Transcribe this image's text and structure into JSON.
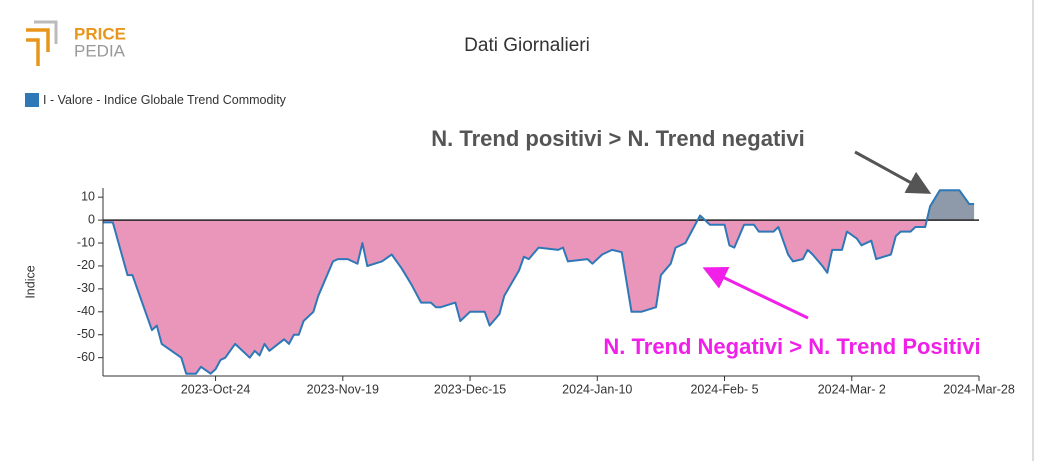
{
  "logo": {
    "top": "PRICE",
    "bottom": "PEDIA"
  },
  "chart_data": {
    "type": "area",
    "title": "Dati Giornalieri",
    "y_label": "Indice",
    "annotations": [
      "N. Trend positivi > N. Trend negativi",
      "N. Trend Negativi > N. Trend Positivi"
    ],
    "annotation_colors": [
      "#555555",
      "#f020e8"
    ],
    "positive_fill": "#8e99a9",
    "negative_fill": "#e996ba",
    "x": [
      "2023-10-01",
      "2023-10-03",
      "2023-10-06",
      "2023-10-07",
      "2023-10-11",
      "2023-10-12",
      "2023-10-13",
      "2023-10-17",
      "2023-10-18",
      "2023-10-20",
      "2023-10-21",
      "2023-10-23",
      "2023-10-24",
      "2023-10-25",
      "2023-10-26",
      "2023-10-28",
      "2023-10-31",
      "2023-11-01",
      "2023-11-02",
      "2023-11-03",
      "2023-11-04",
      "2023-11-07",
      "2023-11-08",
      "2023-11-09",
      "2023-11-10",
      "2023-11-11",
      "2023-11-13",
      "2023-11-14",
      "2023-11-15",
      "2023-11-17",
      "2023-11-18",
      "2023-11-20",
      "2023-11-22",
      "2023-11-23",
      "2023-11-24",
      "2023-11-27",
      "2023-11-29",
      "2023-12-01",
      "2023-12-03",
      "2023-12-05",
      "2023-12-07",
      "2023-12-08",
      "2023-12-09",
      "2023-12-12",
      "2023-12-13",
      "2023-12-15",
      "2023-12-18",
      "2023-12-19",
      "2023-12-21",
      "2023-12-22",
      "2023-12-25",
      "2023-12-26",
      "2023-12-27",
      "2023-12-29",
      "2024-01-02",
      "2024-01-03",
      "2024-01-04",
      "2024-01-08",
      "2024-01-09",
      "2024-01-11",
      "2024-01-13",
      "2024-01-15",
      "2024-01-17",
      "2024-01-19",
      "2024-01-22",
      "2024-01-23",
      "2024-01-25",
      "2024-01-26",
      "2024-01-28",
      "2024-01-31",
      "2024-02-02",
      "2024-02-05",
      "2024-02-06",
      "2024-02-07",
      "2024-02-09",
      "2024-02-11",
      "2024-02-12",
      "2024-02-15",
      "2024-02-16",
      "2024-02-17",
      "2024-02-18",
      "2024-02-19",
      "2024-02-21",
      "2024-02-22",
      "2024-02-23",
      "2024-02-25",
      "2024-02-26",
      "2024-02-27",
      "2024-02-29",
      "2024-03-01",
      "2024-03-03",
      "2024-03-04",
      "2024-03-06",
      "2024-03-07",
      "2024-03-10",
      "2024-03-11",
      "2024-03-12",
      "2024-03-14",
      "2024-03-15",
      "2024-03-17",
      "2024-03-18",
      "2024-03-20",
      "2024-03-24",
      "2024-03-26",
      "2024-03-27"
    ],
    "series": [
      {
        "name": "I - Valore - Indice Globale Trend Commodity",
        "color": "#2e78b7",
        "values": [
          -1,
          -1,
          -24,
          -24,
          -48,
          -46,
          -54,
          -60,
          -67,
          -67,
          -64,
          -67,
          -65,
          -61,
          -60,
          -54,
          -60,
          -57,
          -59,
          -54,
          -57,
          -52,
          -54,
          -50,
          -50,
          -44,
          -40,
          -33,
          -28,
          -18,
          -17,
          -17,
          -19,
          -10,
          -20,
          -18,
          -15,
          -21,
          -28,
          -36,
          -36,
          -38,
          -38,
          -36,
          -44,
          -40,
          -40,
          -46,
          -41,
          -33,
          -22,
          -16,
          -17,
          -12,
          -13,
          -12,
          -18,
          -17,
          -19,
          -15,
          -13,
          -14,
          -40,
          -40,
          -38,
          -24,
          -19,
          -12,
          -10,
          2,
          -2,
          -2,
          -11,
          -12,
          -2,
          -2,
          -5,
          -5,
          -3,
          -9,
          -15,
          -18,
          -17,
          -13,
          -15,
          -20,
          -23,
          -13,
          -13,
          -5,
          -8,
          -11,
          -9,
          -17,
          -15,
          -7,
          -5,
          -5,
          -3,
          -3,
          6,
          13,
          13,
          7,
          7
        ]
      }
    ],
    "xlim": [
      "2023-10-01",
      "2024-03-28"
    ],
    "xticks": [
      {
        "value": "2023-10-24",
        "label": "2023-Oct-24"
      },
      {
        "value": "2023-11-19",
        "label": "2023-Nov-19"
      },
      {
        "value": "2023-12-15",
        "label": "2023-Dec-15"
      },
      {
        "value": "2024-01-10",
        "label": "2024-Jan-10"
      },
      {
        "value": "2024-02-05",
        "label": "2024-Feb- 5"
      },
      {
        "value": "2024-03-02",
        "label": "2024-Mar- 2"
      },
      {
        "value": "2024-03-28",
        "label": "2024-Mar-28"
      }
    ],
    "ylim": [
      -68,
      14
    ],
    "yticks": [
      -60,
      -50,
      -40,
      -30,
      -20,
      -10,
      0,
      10
    ]
  }
}
